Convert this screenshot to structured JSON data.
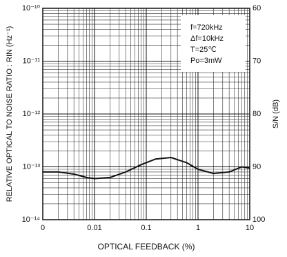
{
  "chart_data": {
    "type": "line",
    "xlabel": "OPTICAL FEEDBACK (%)",
    "ylabel": "RELATIVE OPTICAL TO NOISE RATIO : RIN (Hz⁻¹)",
    "y2label": "S/N (dB)",
    "annotations": [
      "f=720kHz",
      "Δf=10kHz",
      "T=25℃",
      "Po=3mW"
    ],
    "xscale": "log",
    "yscale": "log",
    "grid": true,
    "xlim": [
      0.001,
      10
    ],
    "xticks": [
      {
        "value": 0.001,
        "label": "0"
      },
      0.01,
      0.1,
      1,
      10
    ],
    "ylim": [
      1e-14,
      1e-10
    ],
    "yticks": [
      {
        "value": 1e-14,
        "label": "10⁻¹⁴"
      },
      {
        "value": 1e-13,
        "label": "10⁻¹³"
      },
      {
        "value": 1e-12,
        "label": "10⁻¹²"
      },
      {
        "value": 1e-11,
        "label": "10⁻¹¹"
      },
      {
        "value": 1e-10,
        "label": "10⁻¹⁰"
      }
    ],
    "y2lim": [
      100,
      60
    ],
    "y2ticks": [
      100,
      90,
      80,
      70,
      60
    ],
    "color": "#111111",
    "x": [
      0.001,
      0.002,
      0.004,
      0.007,
      0.01,
      0.02,
      0.04,
      0.08,
      0.15,
      0.3,
      0.6,
      1,
      2,
      4,
      7,
      10
    ],
    "values": [
      8e-14,
      8e-14,
      7.3e-14,
      6.3e-14,
      6e-14,
      6.3e-14,
      8e-14,
      1.1e-13,
      1.4e-13,
      1.5e-13,
      1.2e-13,
      9e-14,
      7.5e-14,
      8e-14,
      1e-13,
      9.5e-14
    ]
  }
}
